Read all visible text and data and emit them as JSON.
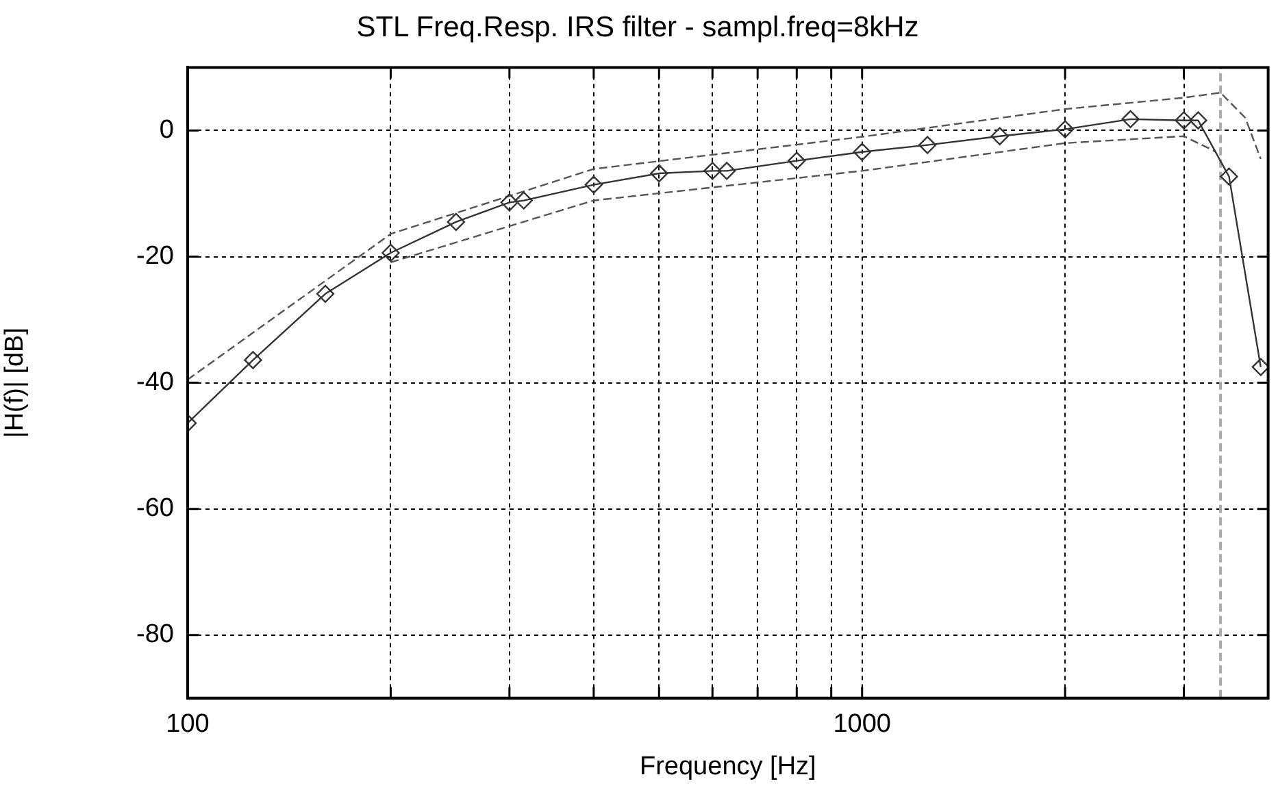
{
  "chart_data": {
    "type": "line",
    "title": "STL Freq.Resp. IRS filter - sampl.freq=8kHz",
    "xlabel": "Frequency [Hz]",
    "ylabel": "|H(f)| [dB]",
    "log": "x",
    "xlim": [
      100,
      4000
    ],
    "ylim": [
      -90,
      10
    ],
    "xticks": [
      100,
      {
        "value": 200,
        "label": null
      },
      {
        "value": 300,
        "label": null
      },
      {
        "value": 400,
        "label": null
      },
      {
        "value": 500,
        "label": null
      },
      {
        "value": 600,
        "label": null
      },
      {
        "value": 700,
        "label": null
      },
      {
        "value": 800,
        "label": null
      },
      {
        "value": 900,
        "label": null
      },
      1000,
      {
        "value": 2000,
        "label": null
      },
      {
        "value": 3000,
        "label": null
      }
    ],
    "yticks": [
      -80,
      -60,
      -40,
      -20,
      0
    ],
    "grid": true,
    "legend": false,
    "series": [
      {
        "color": "#333333",
        "marker": "diamond",
        "line_style": "solid",
        "x": [
          100,
          125,
          160,
          200,
          250,
          300,
          315,
          400,
          500,
          600,
          630,
          800,
          1000,
          1250,
          1600,
          2000,
          2500,
          3000,
          3150,
          3500,
          3900
        ],
        "values": [
          -46.4,
          -36.4,
          -25.9,
          -19.4,
          -14.5,
          -11.4,
          -11.1,
          -8.6,
          -6.8,
          -6.4,
          -6.4,
          -4.8,
          -3.4,
          -2.3,
          -0.9,
          0.2,
          1.8,
          1.6,
          1.6,
          -7.3,
          -37.5
        ]
      },
      {
        "color": "#555555",
        "marker": "none",
        "line_style": "dashed",
        "x": [
          100,
          200,
          400,
          1000,
          2000,
          3000,
          3400,
          3700,
          3900
        ],
        "values": [
          -39.5,
          -16.4,
          -6.1,
          -1.0,
          3.4,
          5.2,
          6.0,
          2.0,
          -4.5
        ]
      },
      {
        "color": "#555555",
        "marker": "none",
        "line_style": "dashed",
        "x": [
          200,
          400,
          1000,
          2000,
          3000,
          3350
        ],
        "values": [
          -20.9,
          -11.1,
          -6.4,
          -2.0,
          -0.9,
          -3.4
        ]
      }
    ],
    "ref_lines": [
      {
        "axis": "x",
        "value": 3400,
        "color": "#aaaaaa",
        "line_style": "dashed"
      }
    ]
  }
}
